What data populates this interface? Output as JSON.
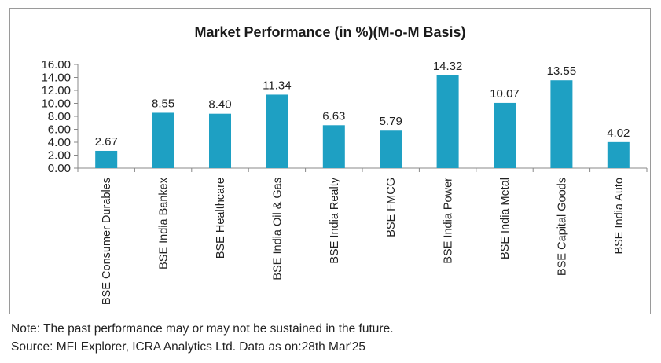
{
  "chart_data": {
    "type": "bar",
    "title": "Market Performance (in %)(M-o-M Basis)",
    "xlabel": "",
    "ylabel": "",
    "categories": [
      "BSE Consumer Durables",
      "BSE India Bankex",
      "BSE Healthcare",
      "BSE India Oil & Gas",
      "BSE India Realty",
      "BSE FMCG",
      "BSE India Power",
      "BSE India Metal",
      "BSE Capital Goods",
      "BSE India Auto"
    ],
    "values": [
      2.67,
      8.55,
      8.4,
      11.34,
      6.63,
      5.79,
      14.32,
      10.07,
      13.55,
      4.02
    ],
    "data_labels": [
      "2.67",
      "8.55",
      "8.40",
      "11.34",
      "6.63",
      "5.79",
      "14.32",
      "10.07",
      "13.55",
      "4.02"
    ],
    "ylim": [
      0,
      16
    ],
    "yticks": [
      "0.00",
      "2.00",
      "4.00",
      "6.00",
      "8.00",
      "10.00",
      "12.00",
      "14.00",
      "16.00"
    ],
    "bar_color": "#1ea0c3",
    "grid": false,
    "legend": "none"
  },
  "notes": {
    "note": "Note: The past performance may or may not be sustained in the future.",
    "source": "Source: MFI Explorer, ICRA Analytics Ltd. Data as on:28th Mar'25"
  }
}
